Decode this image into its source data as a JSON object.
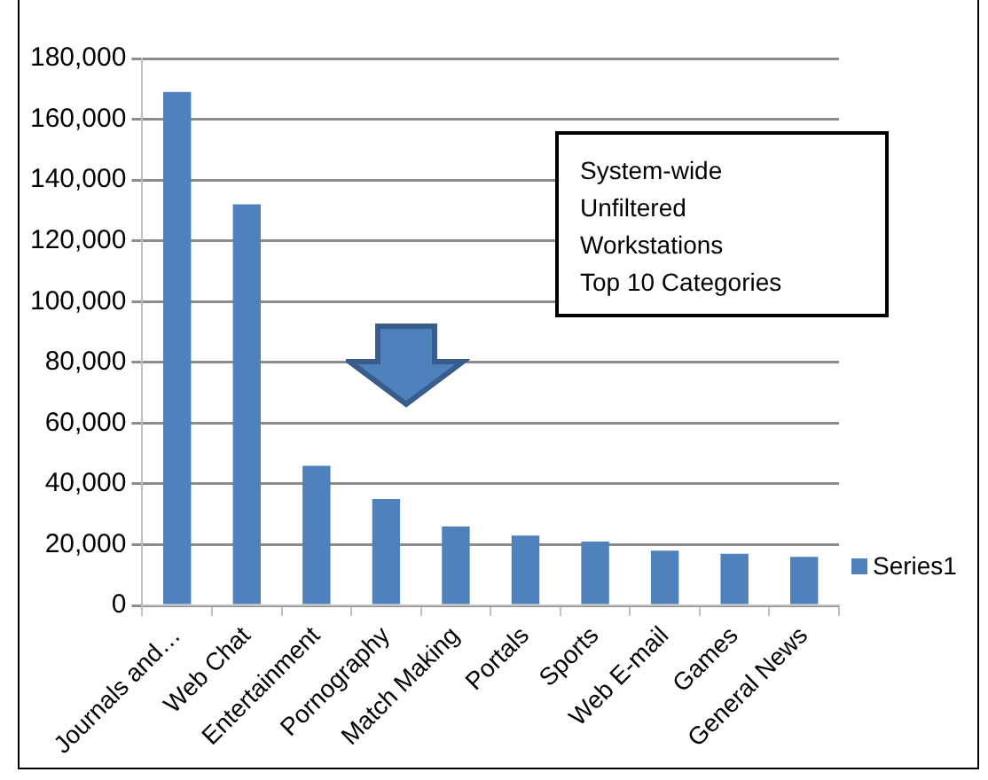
{
  "chart_data": {
    "type": "bar",
    "categories": [
      "Journals and…",
      "Web Chat",
      "Entertainment",
      "Pornography",
      "Match Making",
      "Portals",
      "Sports",
      "Web E-mail",
      "Games",
      "General News"
    ],
    "series": [
      {
        "name": "Series1",
        "color": "#4f81bd",
        "values": [
          169000,
          132000,
          46000,
          35000,
          26000,
          23000,
          21000,
          18000,
          17000,
          16000
        ]
      }
    ],
    "ylim": [
      0,
      180000
    ],
    "yticks": [
      {
        "value": 0,
        "label": "0"
      },
      {
        "value": 20000,
        "label": "20,000"
      },
      {
        "value": 40000,
        "label": "40,000"
      },
      {
        "value": 60000,
        "label": "60,000"
      },
      {
        "value": 80000,
        "label": "80,000"
      },
      {
        "value": 100000,
        "label": "100,000"
      },
      {
        "value": 120000,
        "label": "120,000"
      },
      {
        "value": 140000,
        "label": "140,000"
      },
      {
        "value": 160000,
        "label": "160,000"
      },
      {
        "value": 180000,
        "label": "180,000"
      }
    ],
    "annotations": [
      "System-wide\nUnfiltered\nWorkstations\nTop 10 Categories"
    ],
    "grid": "y",
    "legend": "right"
  }
}
